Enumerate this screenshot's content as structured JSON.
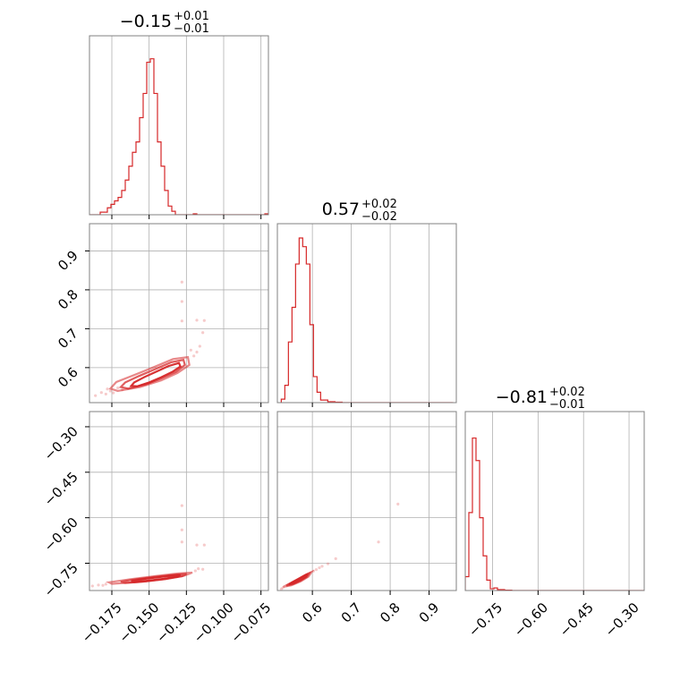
{
  "chart_data": {
    "type": "corner",
    "color": "#d62728",
    "grid": true,
    "parameters": [
      {
        "range": [
          -0.19,
          -0.07
        ],
        "ticks": [
          -0.175,
          -0.15,
          -0.125,
          -0.1,
          -0.075
        ],
        "tick_labels": [
          "−0.175",
          "−0.150",
          "−0.125",
          "−0.100",
          "−0.075"
        ],
        "title": {
          "value": "−0.15",
          "upper": "+0.01",
          "lower": "−0.01"
        },
        "histogram": {
          "start": -0.19,
          "bin_width": 0.0024,
          "counts": [
            0,
            0,
            0,
            0.015,
            0.015,
            0.04,
            0.06,
            0.08,
            0.1,
            0.14,
            0.2,
            0.28,
            0.36,
            0.42,
            0.56,
            0.7,
            0.88,
            0.9,
            0.7,
            0.42,
            0.28,
            0.14,
            0.05,
            0.02,
            0,
            0,
            0,
            0,
            0,
            0.005,
            0,
            0,
            0,
            0,
            0,
            0,
            0,
            0,
            0,
            0,
            0,
            0,
            0,
            0,
            0,
            0,
            0,
            0,
            0,
            0.005
          ]
        }
      },
      {
        "range": [
          0.51,
          0.97
        ],
        "ticks": [
          0.6,
          0.7,
          0.8,
          0.9
        ],
        "tick_labels": [
          "0.6",
          "0.7",
          "0.8",
          "0.9"
        ],
        "title": {
          "value": "0.57",
          "upper": "+0.02",
          "lower": "−0.02"
        },
        "histogram": {
          "start": 0.52,
          "bin_width": 0.0092,
          "counts": [
            0.02,
            0.1,
            0.35,
            0.55,
            0.8,
            0.95,
            0.9,
            0.8,
            0.45,
            0.15,
            0.06,
            0.015,
            0.015,
            0.005,
            0.005,
            0.003,
            0.003,
            0,
            0,
            0,
            0,
            0,
            0,
            0,
            0,
            0,
            0,
            0,
            0,
            0,
            0,
            0,
            0,
            0,
            0,
            0,
            0,
            0,
            0,
            0,
            0,
            0,
            0,
            0,
            0,
            0,
            0,
            0
          ]
        }
      },
      {
        "range": [
          -0.84,
          -0.25
        ],
        "ticks": [
          -0.75,
          -0.6,
          -0.45,
          -0.3
        ],
        "tick_labels": [
          "−0.75",
          "−0.60",
          "−0.45",
          "−0.30"
        ],
        "title": {
          "value": "−0.81",
          "upper": "+0.02",
          "lower": "−0.01"
        },
        "histogram": {
          "start": -0.84,
          "bin_width": 0.0118,
          "counts": [
            0.08,
            0.45,
            0.88,
            0.75,
            0.42,
            0.2,
            0.06,
            0.01,
            0.015,
            0.005,
            0.005,
            0.002,
            0.002,
            0,
            0,
            0,
            0,
            0,
            0,
            0,
            0,
            0,
            0,
            0,
            0,
            0,
            0,
            0,
            0,
            0,
            0,
            0,
            0,
            0,
            0,
            0,
            0,
            0,
            0,
            0,
            0,
            0,
            0,
            0,
            0,
            0,
            0,
            0,
            0,
            0
          ]
        }
      }
    ],
    "pairs": [
      {
        "x_param": 0,
        "y_param": 1,
        "contours": [
          [
            [
              -0.158,
              0.552
            ],
            [
              -0.15,
              0.562
            ],
            [
              -0.142,
              0.575
            ],
            [
              -0.134,
              0.59
            ],
            [
              -0.129,
              0.603
            ],
            [
              -0.13,
              0.612
            ],
            [
              -0.137,
              0.604
            ],
            [
              -0.145,
              0.59
            ],
            [
              -0.153,
              0.576
            ],
            [
              -0.16,
              0.562
            ],
            [
              -0.162,
              0.553
            ]
          ],
          [
            [
              -0.164,
              0.546
            ],
            [
              -0.152,
              0.557
            ],
            [
              -0.142,
              0.572
            ],
            [
              -0.132,
              0.589
            ],
            [
              -0.126,
              0.607
            ],
            [
              -0.127,
              0.62
            ],
            [
              -0.135,
              0.614
            ],
            [
              -0.146,
              0.596
            ],
            [
              -0.157,
              0.578
            ],
            [
              -0.166,
              0.562
            ],
            [
              -0.169,
              0.55
            ]
          ],
          [
            [
              -0.171,
              0.54
            ],
            [
              -0.156,
              0.55
            ],
            [
              -0.142,
              0.567
            ],
            [
              -0.131,
              0.586
            ],
            [
              -0.123,
              0.607
            ],
            [
              -0.124,
              0.627
            ],
            [
              -0.134,
              0.622
            ],
            [
              -0.147,
              0.601
            ],
            [
              -0.16,
              0.581
            ],
            [
              -0.172,
              0.563
            ],
            [
              -0.176,
              0.546
            ]
          ]
        ],
        "scatter": [
          [
            -0.186,
            0.528
          ],
          [
            -0.182,
            0.536
          ],
          [
            -0.179,
            0.532
          ],
          [
            -0.176,
            0.54
          ],
          [
            -0.174,
            0.535
          ],
          [
            -0.178,
            0.545
          ],
          [
            -0.171,
            0.548
          ],
          [
            -0.168,
            0.543
          ],
          [
            -0.12,
            0.63
          ],
          [
            -0.118,
            0.64
          ],
          [
            -0.122,
            0.645
          ],
          [
            -0.116,
            0.655
          ],
          [
            -0.114,
            0.69
          ],
          [
            -0.128,
            0.72
          ],
          [
            -0.118,
            0.722
          ],
          [
            -0.113,
            0.721
          ],
          [
            -0.128,
            0.77
          ],
          [
            -0.128,
            0.82
          ]
        ]
      },
      {
        "x_param": 0,
        "y_param": 2,
        "contours": [
          [
            [
              -0.16,
              -0.812
            ],
            [
              -0.15,
              -0.807
            ],
            [
              -0.14,
              -0.801
            ],
            [
              -0.131,
              -0.794
            ],
            [
              -0.129,
              -0.789
            ],
            [
              -0.135,
              -0.791
            ],
            [
              -0.145,
              -0.797
            ],
            [
              -0.155,
              -0.803
            ],
            [
              -0.162,
              -0.809
            ]
          ],
          [
            [
              -0.166,
              -0.815
            ],
            [
              -0.152,
              -0.81
            ],
            [
              -0.139,
              -0.802
            ],
            [
              -0.128,
              -0.793
            ],
            [
              -0.125,
              -0.785
            ],
            [
              -0.133,
              -0.788
            ],
            [
              -0.146,
              -0.795
            ],
            [
              -0.159,
              -0.803
            ],
            [
              -0.169,
              -0.811
            ]
          ],
          [
            [
              -0.175,
              -0.818
            ],
            [
              -0.157,
              -0.812
            ],
            [
              -0.14,
              -0.803
            ],
            [
              -0.127,
              -0.792
            ],
            [
              -0.121,
              -0.781
            ],
            [
              -0.131,
              -0.784
            ],
            [
              -0.147,
              -0.793
            ],
            [
              -0.163,
              -0.803
            ],
            [
              -0.177,
              -0.813
            ]
          ]
        ],
        "scatter": [
          [
            -0.188,
            -0.825
          ],
          [
            -0.184,
            -0.822
          ],
          [
            -0.181,
            -0.823
          ],
          [
            -0.179,
            -0.819
          ],
          [
            -0.119,
            -0.775
          ],
          [
            -0.117,
            -0.768
          ],
          [
            -0.114,
            -0.77
          ],
          [
            -0.128,
            -0.68
          ],
          [
            -0.128,
            -0.64
          ],
          [
            -0.128,
            -0.56
          ],
          [
            -0.118,
            -0.69
          ],
          [
            -0.113,
            -0.69
          ]
        ]
      },
      {
        "x_param": 1,
        "y_param": 2,
        "contours": [
          [
            [
              0.54,
              -0.82
            ],
            [
              0.552,
              -0.811
            ],
            [
              0.566,
              -0.801
            ],
            [
              0.58,
              -0.791
            ],
            [
              0.588,
              -0.786
            ],
            [
              0.582,
              -0.795
            ],
            [
              0.568,
              -0.806
            ],
            [
              0.554,
              -0.815
            ]
          ],
          [
            [
              0.533,
              -0.824
            ],
            [
              0.548,
              -0.813
            ],
            [
              0.565,
              -0.801
            ],
            [
              0.582,
              -0.789
            ],
            [
              0.592,
              -0.783
            ],
            [
              0.586,
              -0.795
            ],
            [
              0.569,
              -0.808
            ],
            [
              0.55,
              -0.819
            ]
          ],
          [
            [
              0.525,
              -0.828
            ],
            [
              0.543,
              -0.816
            ],
            [
              0.563,
              -0.802
            ],
            [
              0.584,
              -0.787
            ],
            [
              0.598,
              -0.779
            ],
            [
              0.59,
              -0.794
            ],
            [
              0.57,
              -0.81
            ],
            [
              0.546,
              -0.823
            ]
          ]
        ],
        "scatter": [
          [
            0.52,
            -0.835
          ],
          [
            0.524,
            -0.831
          ],
          [
            0.603,
            -0.776
          ],
          [
            0.61,
            -0.771
          ],
          [
            0.618,
            -0.765
          ],
          [
            0.625,
            -0.76
          ],
          [
            0.64,
            -0.752
          ],
          [
            0.66,
            -0.735
          ],
          [
            0.77,
            -0.68
          ],
          [
            0.82,
            -0.555
          ]
        ]
      }
    ]
  }
}
